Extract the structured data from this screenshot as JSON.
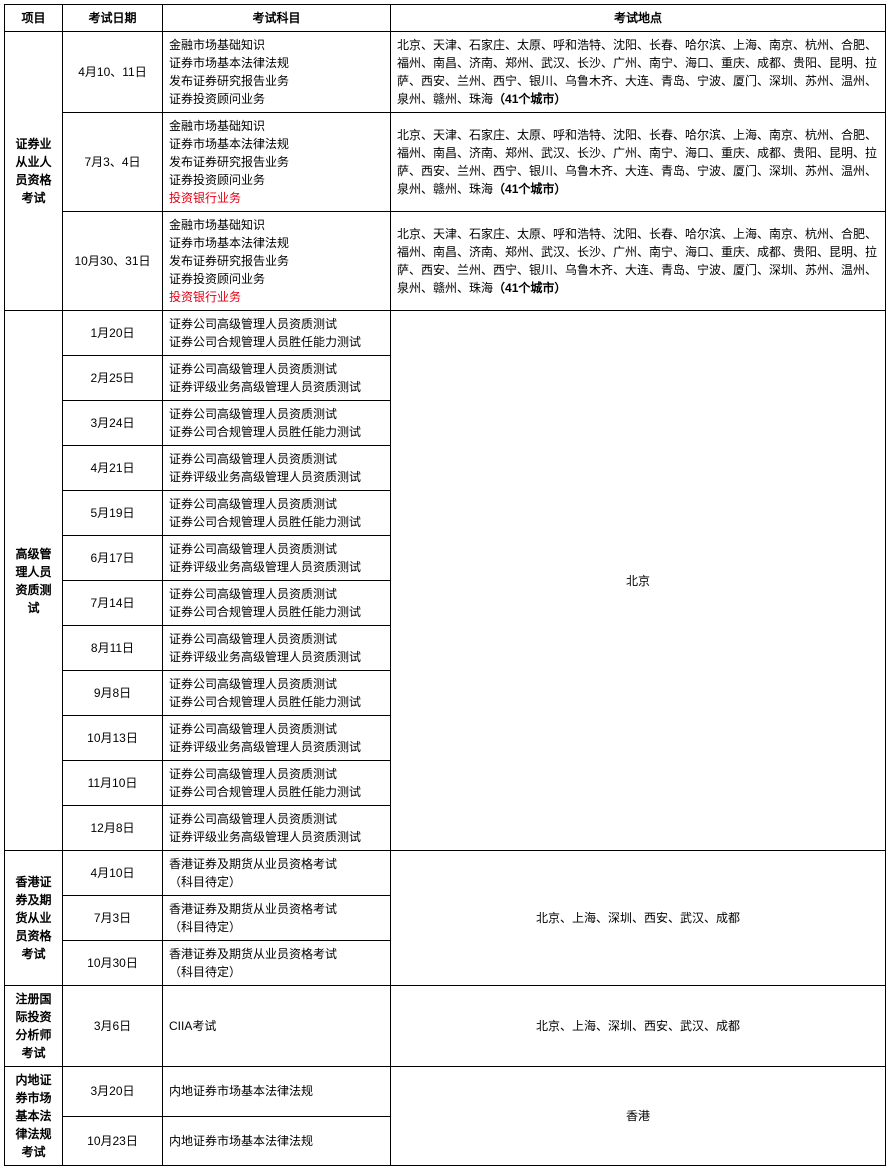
{
  "headers": {
    "project": "项目",
    "date": "考试日期",
    "subject": "考试科目",
    "location": "考试地点"
  },
  "groups": [
    {
      "name": "证券业从业人员资格考试",
      "locationCenter": false,
      "rows": [
        {
          "date": "4月10、11日",
          "subjects": [
            {
              "t": "金融市场基础知识"
            },
            {
              "t": "证券市场基本法律法规"
            },
            {
              "t": "发布证券研究报告业务"
            },
            {
              "t": "证券投资顾问业务"
            }
          ],
          "location": "北京、天津、石家庄、太原、呼和浩特、沈阳、长春、哈尔滨、上海、南京、杭州、合肥、福州、南昌、济南、郑州、武汉、长沙、广州、南宁、海口、重庆、成都、贵阳、昆明、拉萨、西安、兰州、西宁、银川、乌鲁木齐、大连、青岛、宁波、厦门、深圳、苏州、温州、泉州、赣州、珠海",
          "locationBold": "（41个城市）"
        },
        {
          "date": "7月3、4日",
          "subjects": [
            {
              "t": "金融市场基础知识"
            },
            {
              "t": "证券市场基本法律法规"
            },
            {
              "t": "发布证券研究报告业务"
            },
            {
              "t": "证券投资顾问业务"
            },
            {
              "t": "投资银行业务",
              "red": true
            }
          ],
          "location": "北京、天津、石家庄、太原、呼和浩特、沈阳、长春、哈尔滨、上海、南京、杭州、合肥、福州、南昌、济南、郑州、武汉、长沙、广州、南宁、海口、重庆、成都、贵阳、昆明、拉萨、西安、兰州、西宁、银川、乌鲁木齐、大连、青岛、宁波、厦门、深圳、苏州、温州、泉州、赣州、珠海",
          "locationBold": "（41个城市）"
        },
        {
          "date": "10月30、31日",
          "subjects": [
            {
              "t": "金融市场基础知识"
            },
            {
              "t": "证券市场基本法律法规"
            },
            {
              "t": "发布证券研究报告业务"
            },
            {
              "t": "证券投资顾问业务"
            },
            {
              "t": "投资银行业务",
              "red": true
            }
          ],
          "location": "北京、天津、石家庄、太原、呼和浩特、沈阳、长春、哈尔滨、上海、南京、杭州、合肥、福州、南昌、济南、郑州、武汉、长沙、广州、南宁、海口、重庆、成都、贵阳、昆明、拉萨、西安、兰州、西宁、银川、乌鲁木齐、大连、青岛、宁波、厦门、深圳、苏州、温州、泉州、赣州、珠海",
          "locationBold": "（41个城市）"
        }
      ]
    },
    {
      "name": "高级管理人员资质测试",
      "locationCenter": true,
      "mergedLocation": "北京",
      "rows": [
        {
          "date": "1月20日",
          "subjects": [
            {
              "t": "证券公司高级管理人员资质测试"
            },
            {
              "t": "证券公司合规管理人员胜任能力测试"
            }
          ]
        },
        {
          "date": "2月25日",
          "subjects": [
            {
              "t": "证券公司高级管理人员资质测试"
            },
            {
              "t": "证券评级业务高级管理人员资质测试"
            }
          ]
        },
        {
          "date": "3月24日",
          "subjects": [
            {
              "t": "证券公司高级管理人员资质测试"
            },
            {
              "t": "证券公司合规管理人员胜任能力测试"
            }
          ]
        },
        {
          "date": "4月21日",
          "subjects": [
            {
              "t": "证券公司高级管理人员资质测试"
            },
            {
              "t": "证券评级业务高级管理人员资质测试"
            }
          ]
        },
        {
          "date": "5月19日",
          "subjects": [
            {
              "t": "证券公司高级管理人员资质测试"
            },
            {
              "t": "证券公司合规管理人员胜任能力测试"
            }
          ]
        },
        {
          "date": "6月17日",
          "subjects": [
            {
              "t": "证券公司高级管理人员资质测试"
            },
            {
              "t": "证券评级业务高级管理人员资质测试"
            }
          ]
        },
        {
          "date": "7月14日",
          "subjects": [
            {
              "t": "证券公司高级管理人员资质测试"
            },
            {
              "t": "证券公司合规管理人员胜任能力测试"
            }
          ]
        },
        {
          "date": "8月11日",
          "subjects": [
            {
              "t": "证券公司高级管理人员资质测试"
            },
            {
              "t": "证券评级业务高级管理人员资质测试"
            }
          ]
        },
        {
          "date": "9月8日",
          "subjects": [
            {
              "t": "证券公司高级管理人员资质测试"
            },
            {
              "t": "证券公司合规管理人员胜任能力测试"
            }
          ]
        },
        {
          "date": "10月13日",
          "subjects": [
            {
              "t": "证券公司高级管理人员资质测试"
            },
            {
              "t": "证券评级业务高级管理人员资质测试"
            }
          ]
        },
        {
          "date": "11月10日",
          "subjects": [
            {
              "t": "证券公司高级管理人员资质测试"
            },
            {
              "t": "证券公司合规管理人员胜任能力测试"
            }
          ]
        },
        {
          "date": "12月8日",
          "subjects": [
            {
              "t": "证券公司高级管理人员资质测试"
            },
            {
              "t": "证券评级业务高级管理人员资质测试"
            }
          ]
        }
      ]
    },
    {
      "name": "香港证券及期货从业员资格考试",
      "locationCenter": true,
      "mergedLocation": "北京、上海、深圳、西安、武汉、成都",
      "rows": [
        {
          "date": "4月10日",
          "subjects": [
            {
              "t": "香港证券及期货从业员资格考试"
            },
            {
              "t": "（科目待定）"
            }
          ]
        },
        {
          "date": "7月3日",
          "subjects": [
            {
              "t": "香港证券及期货从业员资格考试"
            },
            {
              "t": "（科目待定）"
            }
          ]
        },
        {
          "date": "10月30日",
          "subjects": [
            {
              "t": "香港证券及期货从业员资格考试"
            },
            {
              "t": "（科目待定）"
            }
          ]
        }
      ]
    },
    {
      "name": "注册国际投资分析师考试",
      "locationCenter": true,
      "mergedLocation": "北京、上海、深圳、西安、武汉、成都",
      "rows": [
        {
          "date": "3月6日",
          "subjects": [
            {
              "t": "CIIA考试"
            }
          ]
        }
      ]
    },
    {
      "name": "内地证券市场基本法律法规考试",
      "locationCenter": true,
      "mergedLocation": "香港",
      "rows": [
        {
          "date": "3月20日",
          "subjects": [
            {
              "t": "内地证券市场基本法律法规"
            }
          ]
        },
        {
          "date": "10月23日",
          "subjects": [
            {
              "t": "内地证券市场基本法律法规"
            }
          ]
        }
      ]
    }
  ]
}
